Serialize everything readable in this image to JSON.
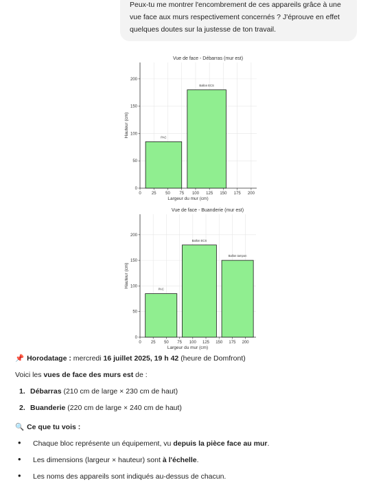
{
  "user_message": {
    "text": "Peux-tu me montrer l'encombrement de ces appareils grâce à une vue face aux murs respectivement concernés ? J'éprouve en effet quelques doutes sur la justesse de ton travail."
  },
  "colors": {
    "bar_fill": "#90ee90",
    "bar_stroke": "#1a1a1a",
    "grid": "#e6e6e6",
    "pin": "#d23b3b"
  },
  "chart_data": [
    {
      "type": "bar",
      "title": "Vue de face - Débarras (mur est)",
      "xlabel": "Largeur du mur (cm)",
      "ylabel": "Hauteur (cm)",
      "xlim": [
        0,
        210
      ],
      "ylim": [
        0,
        230
      ],
      "xticks": [
        0,
        25,
        50,
        75,
        100,
        125,
        150,
        175,
        200
      ],
      "yticks": [
        0,
        50,
        100,
        150,
        200
      ],
      "grid": true,
      "bars": [
        {
          "label": "PAC",
          "x_start": 10,
          "width": 65,
          "height": 85
        },
        {
          "label": "Ballon ECS",
          "x_start": 85,
          "width": 70,
          "height": 180
        }
      ]
    },
    {
      "type": "bar",
      "title": "Vue de face - Buanderie (mur est)",
      "xlabel": "Largeur du mur (cm)",
      "ylabel": "Hauteur (cm)",
      "xlim": [
        0,
        220
      ],
      "ylim": [
        0,
        240
      ],
      "xticks": [
        0,
        25,
        50,
        75,
        100,
        125,
        150,
        175,
        200
      ],
      "yticks": [
        0,
        50,
        100,
        150,
        200
      ],
      "grid": true,
      "bars": [
        {
          "label": "PAC",
          "x_start": 10,
          "width": 60,
          "height": 85
        },
        {
          "label": "Ballon ECS",
          "x_start": 80,
          "width": 65,
          "height": 180
        },
        {
          "label": "Ballon tampon",
          "x_start": 155,
          "width": 60,
          "height": 150
        }
      ]
    }
  ],
  "assistant": {
    "timestamp_label": "Horodatage :",
    "timestamp_prefix": "mercredi",
    "timestamp_date": "16 juillet 2025, 19 h 42",
    "timestamp_suffix": "(heure de Domfront)",
    "intro_prefix": "Voici les",
    "intro_bold": "vues de face des murs est",
    "intro_suffix": "de :",
    "list": [
      {
        "num": "1.",
        "name": "Débarras",
        "detail": "(210 cm de large × 230 cm de haut)"
      },
      {
        "num": "2.",
        "name": "Buanderie",
        "detail": "(220 cm de large × 240 cm de haut)"
      }
    ],
    "section_title": "Ce que tu vois :",
    "bullets": [
      {
        "prefix": "Chaque bloc représente un équipement, vu",
        "bold": "depuis la pièce face au mur",
        "suffix": "."
      },
      {
        "prefix": "Les dimensions (largeur × hauteur) sont",
        "bold": "à l'échelle",
        "suffix": "."
      },
      {
        "prefix": "Les noms des appareils sont indiqués au-dessus de chacun.",
        "bold": "",
        "suffix": ""
      }
    ]
  }
}
